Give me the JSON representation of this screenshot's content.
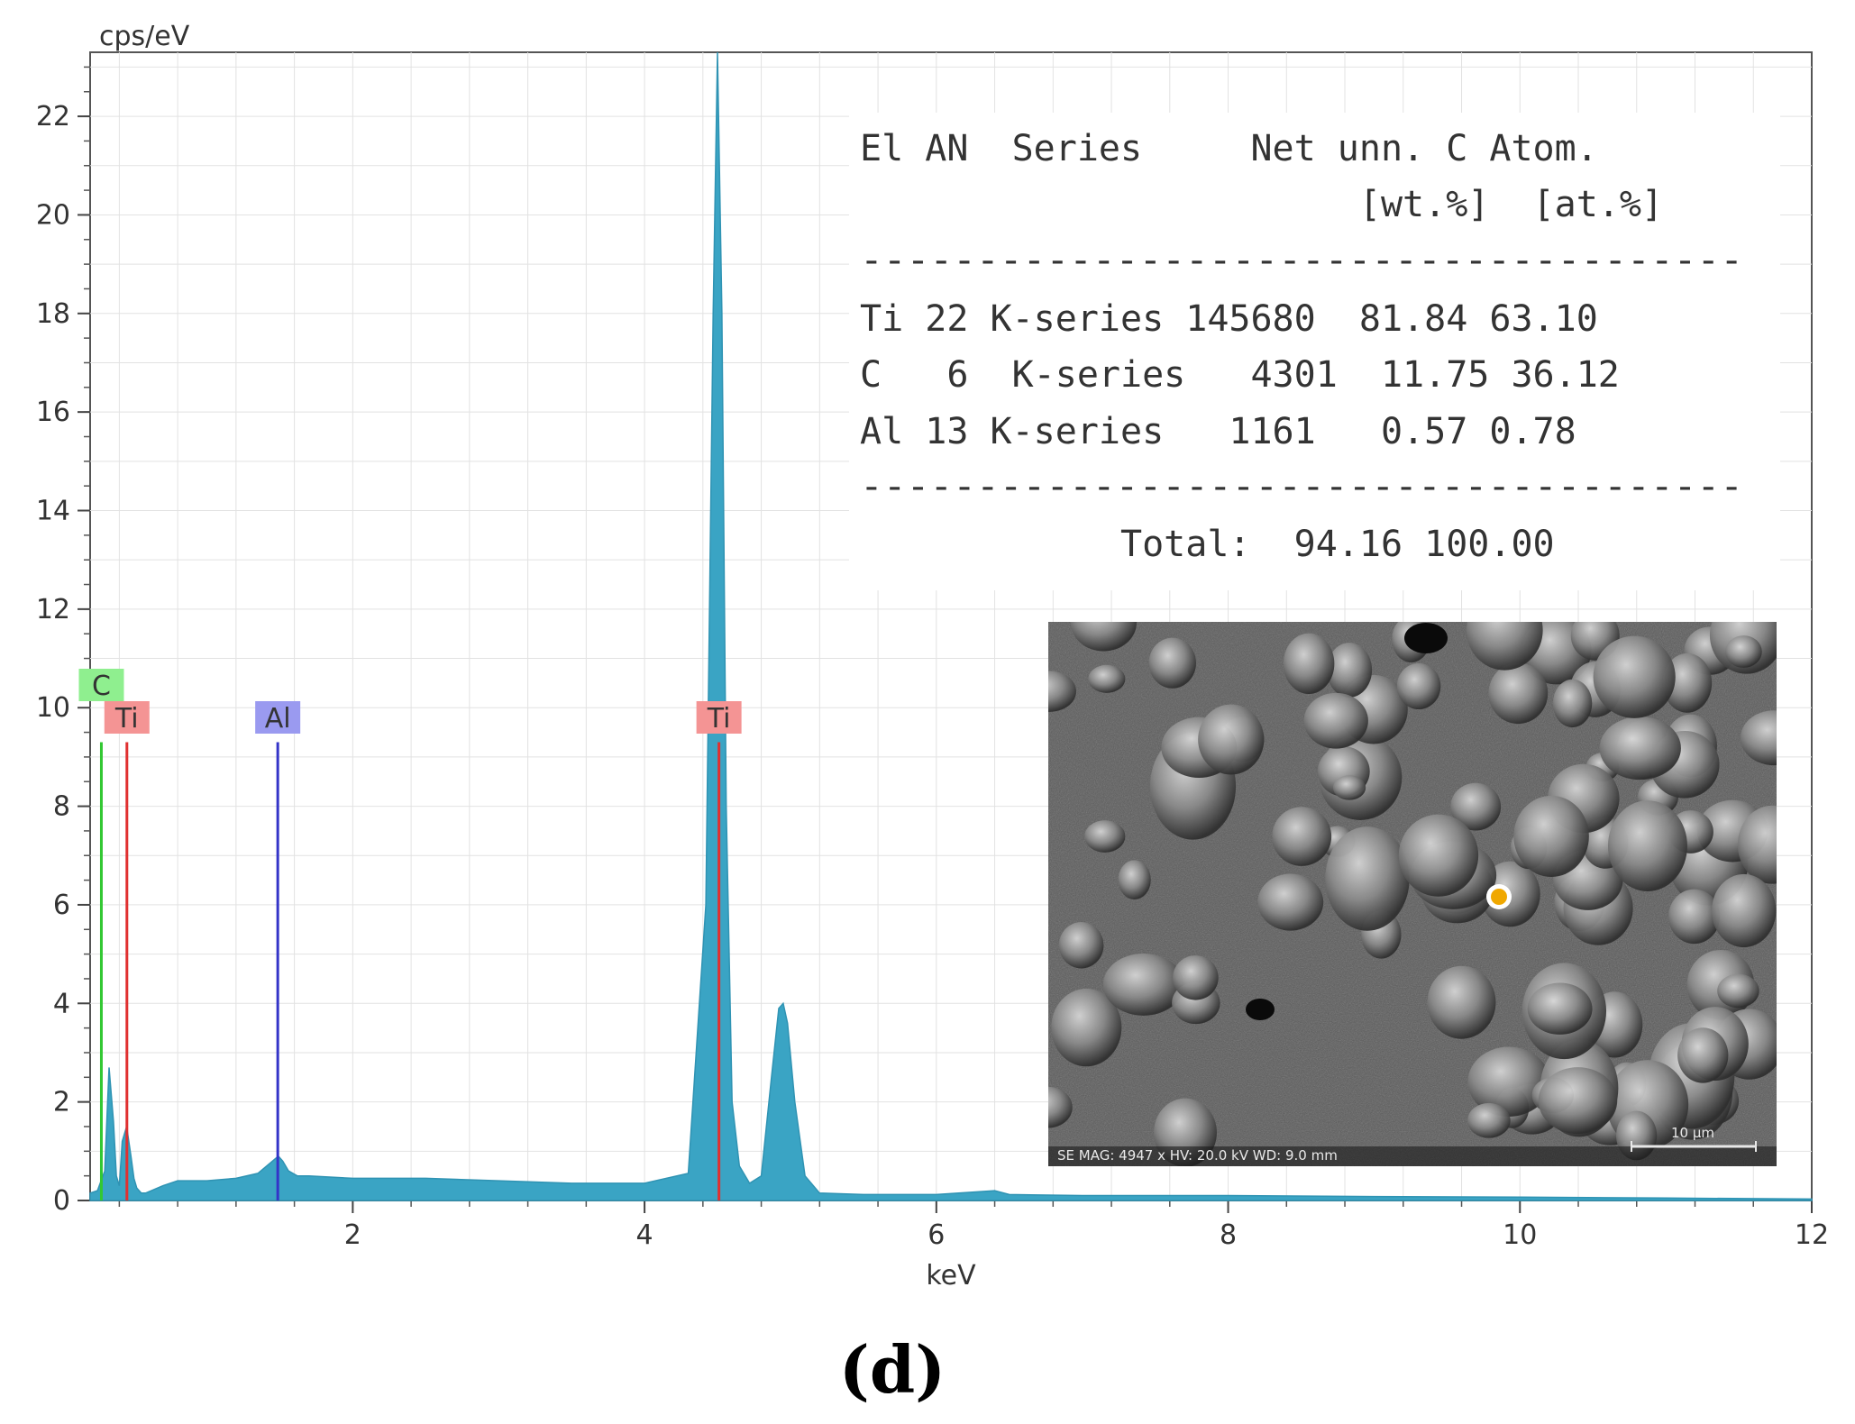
{
  "panel_label": "(d)",
  "chart_data": {
    "type": "line",
    "xlabel": "keV",
    "ylabel": "cps/eV",
    "xlim": [
      0.2,
      12
    ],
    "ylim": [
      0,
      23.3
    ],
    "x_ticks": [
      2,
      4,
      6,
      8,
      10,
      12
    ],
    "x_tick_labels": [
      "2",
      "4",
      "6",
      "8",
      "10",
      "12"
    ],
    "y_ticks": [
      0,
      2,
      4,
      6,
      8,
      10,
      12,
      14,
      16,
      18,
      20,
      22
    ],
    "y_tick_labels": [
      "0",
      "2",
      "4",
      "6",
      "8",
      "10",
      "12",
      "14",
      "16",
      "18",
      "20",
      "22"
    ],
    "grid": true,
    "series": [
      {
        "color": "#3aa4c4",
        "x": [
          0.2,
          0.25,
          0.3,
          0.33,
          0.36,
          0.38,
          0.4,
          0.42,
          0.45,
          0.48,
          0.5,
          0.52,
          0.55,
          0.58,
          0.62,
          0.7,
          0.8,
          1.0,
          1.2,
          1.35,
          1.45,
          1.49,
          1.52,
          1.56,
          1.62,
          1.7,
          2.0,
          2.5,
          3.0,
          3.5,
          4.0,
          4.3,
          4.42,
          4.47,
          4.5,
          4.53,
          4.56,
          4.6,
          4.65,
          4.72,
          4.8,
          4.87,
          4.92,
          4.95,
          4.98,
          5.03,
          5.1,
          5.2,
          5.5,
          6.0,
          6.4,
          6.5,
          7.0,
          8.0,
          9.0,
          10.0,
          11.0,
          12.0
        ],
        "y": [
          0.15,
          0.2,
          0.6,
          2.7,
          1.6,
          0.5,
          0.3,
          1.2,
          1.5,
          0.9,
          0.45,
          0.25,
          0.15,
          0.15,
          0.2,
          0.3,
          0.4,
          0.4,
          0.45,
          0.55,
          0.8,
          0.9,
          0.8,
          0.6,
          0.5,
          0.5,
          0.45,
          0.45,
          0.4,
          0.35,
          0.35,
          0.55,
          6.0,
          18.0,
          23.3,
          18.0,
          8.0,
          2.0,
          0.7,
          0.35,
          0.5,
          2.5,
          3.9,
          4.0,
          3.6,
          2.0,
          0.5,
          0.15,
          0.12,
          0.12,
          0.2,
          0.12,
          0.1,
          0.1,
          0.08,
          0.07,
          0.05,
          0.03
        ]
      }
    ],
    "element_markers": [
      {
        "label": "C",
        "energy": 0.277,
        "height": 9.3,
        "color": "#32c832",
        "box_color": "#8fef8f",
        "label_row": 1
      },
      {
        "label": "Ti",
        "energy": 0.452,
        "height": 9.3,
        "color": "#e03030",
        "box_color": "#f49494",
        "label_row": 0
      },
      {
        "label": "Al",
        "energy": 1.486,
        "height": 9.3,
        "color": "#3434c8",
        "box_color": "#9a9af0",
        "label_row": 0
      },
      {
        "label": "Ti",
        "energy": 4.51,
        "height": 9.3,
        "color": "#e03030",
        "box_color": "#f49494",
        "label_row": 0
      }
    ],
    "quant_table": {
      "header_line1": "El AN  Series     Net unn. C Atom.",
      "header_line2": "                       [wt.%]  [at.%]",
      "separator": "--------------------------------------",
      "rows": [
        "Ti 22 K-series 145680  81.84 63.10",
        "C   6  K-series   4301  11.75 36.12",
        "Al 13 K-series   1161   0.57 0.78"
      ],
      "total_line": "            Total:  94.16 100.00"
    }
  },
  "inset_image": {
    "description_label": "SE image",
    "info_bar": "SE  MAG: 4947 x  HV: 20.0 kV  WD: 9.0 mm",
    "scale_bar": "10 µm"
  }
}
